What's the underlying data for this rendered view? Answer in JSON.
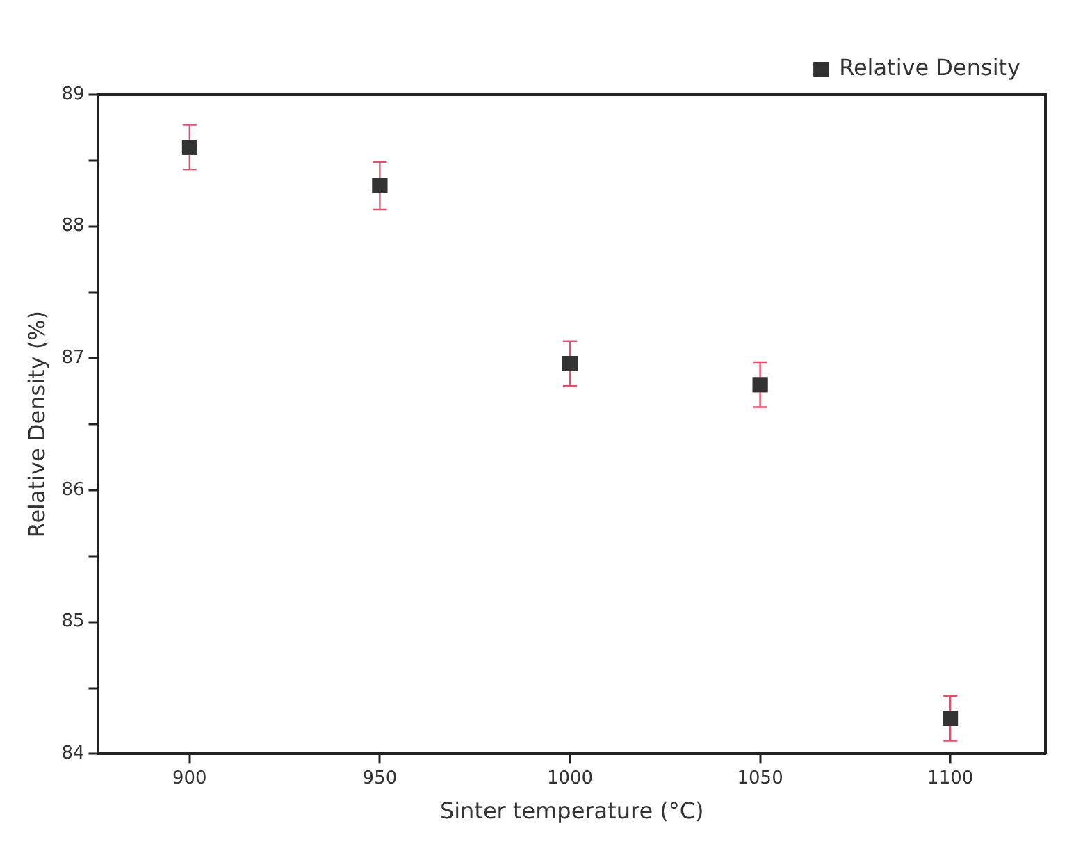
{
  "chart_data": {
    "type": "scatter",
    "xlabel": "Sinter temperature (°C)",
    "ylabel": "Relative Density (%)",
    "x": [
      900,
      950,
      1000,
      1050,
      1100
    ],
    "series": [
      {
        "name": "Relative Density",
        "color": "#333333",
        "values": [
          88.6,
          88.31,
          86.96,
          86.8,
          84.27
        ],
        "errors": [
          0.17,
          0.18,
          0.17,
          0.17,
          0.17
        ]
      }
    ],
    "marker": "square",
    "legend": "top right",
    "grid": false,
    "xlim": [
      876,
      1125
    ],
    "xticks": [
      900,
      950,
      1000,
      1050,
      1100
    ],
    "ylim": [
      84,
      89
    ],
    "yticks": [
      84,
      {
        "value": 84.5,
        "label": null
      },
      85,
      {
        "value": 85.5,
        "label": null
      },
      86,
      {
        "value": 86.5,
        "label": null
      },
      87,
      {
        "value": 87.5,
        "label": null
      },
      88,
      {
        "value": 88.5,
        "label": null
      },
      89
    ]
  }
}
